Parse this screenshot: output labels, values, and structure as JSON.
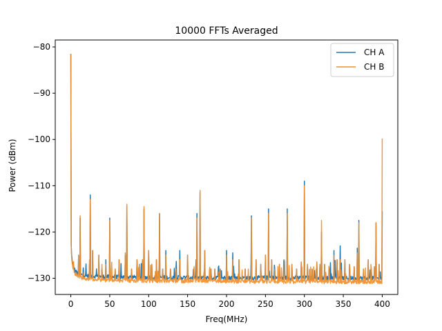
{
  "chart_data": {
    "type": "line",
    "title": "10000 FFTs Averaged",
    "xlabel": "Freq(MHz)",
    "ylabel": "Power (dBm)",
    "xlim": [
      -20,
      420
    ],
    "ylim": [
      -133.5,
      -78.5
    ],
    "xticks": [
      0,
      50,
      100,
      150,
      200,
      250,
      300,
      350,
      400
    ],
    "yticks": [
      -80,
      -90,
      -100,
      -110,
      -120,
      -130
    ],
    "xtick_labels": [
      "0",
      "50",
      "100",
      "150",
      "200",
      "250",
      "300",
      "350",
      "400"
    ],
    "ytick_labels": [
      "−80",
      "−90",
      "−100",
      "−110",
      "−120",
      "−130"
    ],
    "grid": false,
    "legend_position": "top-right",
    "series": [
      {
        "name": "CH A",
        "color": "#1f77b4",
        "baseline": [
          [
            0,
            -115
          ],
          [
            0.5,
            -123
          ],
          [
            1,
            -125
          ],
          [
            2,
            -126.5
          ],
          [
            4,
            -127.8
          ],
          [
            6,
            -128.5
          ],
          [
            10,
            -129.1
          ],
          [
            20,
            -129.5
          ],
          [
            50,
            -129.7
          ],
          [
            100,
            -129.8
          ],
          [
            200,
            -129.9
          ],
          [
            300,
            -129.9
          ],
          [
            400,
            -130.0
          ]
        ],
        "peaks": [
          [
            0,
            -81.5
          ],
          [
            10,
            -125
          ],
          [
            12,
            -117
          ],
          [
            24,
            -127
          ],
          [
            25,
            -112
          ],
          [
            28,
            -124
          ],
          [
            36,
            -125
          ],
          [
            40,
            -128
          ],
          [
            45,
            -126
          ],
          [
            50,
            -117
          ],
          [
            57,
            -128
          ],
          [
            62,
            -126
          ],
          [
            70,
            -125
          ],
          [
            72,
            -114.5
          ],
          [
            78,
            -128
          ],
          [
            85,
            -126
          ],
          [
            88,
            -127
          ],
          [
            92,
            -126
          ],
          [
            94,
            -115
          ],
          [
            100,
            -124
          ],
          [
            104,
            -127
          ],
          [
            110,
            -126
          ],
          [
            114,
            -116
          ],
          [
            118,
            -128
          ],
          [
            122,
            -124
          ],
          [
            128,
            -128
          ],
          [
            135,
            -128
          ],
          [
            140,
            -124
          ],
          [
            150,
            -125
          ],
          [
            158,
            -128
          ],
          [
            162,
            -116
          ],
          [
            166,
            -111.5
          ],
          [
            172,
            -124
          ],
          [
            180,
            -128
          ],
          [
            185,
            -128
          ],
          [
            192,
            -128
          ],
          [
            200,
            -124
          ],
          [
            208,
            -124.5
          ],
          [
            216,
            -126
          ],
          [
            224,
            -128
          ],
          [
            232,
            -116.5
          ],
          [
            238,
            -126
          ],
          [
            244,
            -127
          ],
          [
            250,
            -125
          ],
          [
            254,
            -115
          ],
          [
            258,
            -126
          ],
          [
            262,
            -128
          ],
          [
            268,
            -127
          ],
          [
            274,
            -126
          ],
          [
            278,
            -115
          ],
          [
            284,
            -127
          ],
          [
            290,
            -128
          ],
          [
            296,
            -126.5
          ],
          [
            300,
            -109
          ],
          [
            304,
            -127
          ],
          [
            310,
            -128
          ],
          [
            316,
            -126.5
          ],
          [
            320,
            -127
          ],
          [
            322,
            -120
          ],
          [
            326,
            -127
          ],
          [
            332,
            -128
          ],
          [
            338,
            -124
          ],
          [
            342,
            -126
          ],
          [
            346,
            -123
          ],
          [
            352,
            -126
          ],
          [
            358,
            -127
          ],
          [
            364,
            -127.5
          ],
          [
            368,
            -123.5
          ],
          [
            370,
            -117.5
          ],
          [
            376,
            -128
          ],
          [
            382,
            -126
          ],
          [
            386,
            -128
          ],
          [
            390,
            -127.5
          ],
          [
            392,
            -118
          ],
          [
            396,
            -127
          ],
          [
            400,
            -115.5
          ]
        ]
      },
      {
        "name": "CH B",
        "color": "#f28e2b",
        "baseline": [
          [
            0,
            -118
          ],
          [
            0.5,
            -123
          ],
          [
            1,
            -125.5
          ],
          [
            2,
            -127
          ],
          [
            4,
            -128.3
          ],
          [
            6,
            -129
          ],
          [
            10,
            -129.6
          ],
          [
            20,
            -130.1
          ],
          [
            50,
            -130.4
          ],
          [
            100,
            -130.5
          ],
          [
            200,
            -130.6
          ],
          [
            300,
            -130.7
          ],
          [
            400,
            -130.8
          ]
        ],
        "peaks": [
          [
            0,
            -81.5
          ],
          [
            10,
            -125
          ],
          [
            12,
            -116.5
          ],
          [
            24,
            -126
          ],
          [
            25,
            -113
          ],
          [
            28,
            -124
          ],
          [
            36,
            -125
          ],
          [
            40,
            -127
          ],
          [
            45,
            -127
          ],
          [
            50,
            -117.5
          ],
          [
            57,
            -128
          ],
          [
            62,
            -126
          ],
          [
            70,
            -124.5
          ],
          [
            72,
            -114
          ],
          [
            78,
            -128
          ],
          [
            85,
            -126
          ],
          [
            88,
            -127
          ],
          [
            92,
            -126
          ],
          [
            94,
            -114.5
          ],
          [
            100,
            -124
          ],
          [
            104,
            -127
          ],
          [
            110,
            -126
          ],
          [
            114,
            -116
          ],
          [
            118,
            -128
          ],
          [
            122,
            -125
          ],
          [
            128,
            -128
          ],
          [
            135,
            -128
          ],
          [
            140,
            -126
          ],
          [
            150,
            -125
          ],
          [
            158,
            -128
          ],
          [
            162,
            -117
          ],
          [
            166,
            -111
          ],
          [
            172,
            -124
          ],
          [
            180,
            -128
          ],
          [
            185,
            -128
          ],
          [
            192,
            -128
          ],
          [
            200,
            -125
          ],
          [
            208,
            -126
          ],
          [
            216,
            -126
          ],
          [
            224,
            -128
          ],
          [
            232,
            -117
          ],
          [
            238,
            -126
          ],
          [
            244,
            -127
          ],
          [
            250,
            -125
          ],
          [
            254,
            -116
          ],
          [
            258,
            -126
          ],
          [
            262,
            -128
          ],
          [
            268,
            -127
          ],
          [
            274,
            -126
          ],
          [
            278,
            -116
          ],
          [
            284,
            -127
          ],
          [
            290,
            -128
          ],
          [
            296,
            -126.5
          ],
          [
            300,
            -110
          ],
          [
            304,
            -127
          ],
          [
            310,
            -128
          ],
          [
            316,
            -126.5
          ],
          [
            320,
            -127
          ],
          [
            322,
            -117.5
          ],
          [
            326,
            -127
          ],
          [
            332,
            -128
          ],
          [
            338,
            -125
          ],
          [
            342,
            -126
          ],
          [
            346,
            -126
          ],
          [
            352,
            -126
          ],
          [
            358,
            -127
          ],
          [
            364,
            -127.5
          ],
          [
            368,
            -124.5
          ],
          [
            370,
            -118
          ],
          [
            376,
            -128
          ],
          [
            382,
            -126
          ],
          [
            386,
            -128
          ],
          [
            390,
            -127.5
          ],
          [
            392,
            -118
          ],
          [
            396,
            -127
          ],
          [
            400,
            -99.8
          ]
        ]
      }
    ]
  }
}
